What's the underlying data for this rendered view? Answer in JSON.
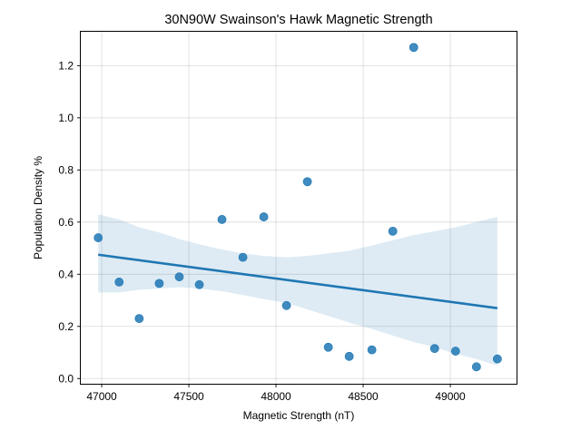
{
  "chart_data": {
    "type": "scatter",
    "title": "30N90W Swainson's Hawk Magnetic Strength",
    "xlabel": "Magnetic Strength (nT)",
    "ylabel": "Population Density %",
    "xlim": [
      46880,
      49380
    ],
    "ylim": [
      -0.02,
      1.33
    ],
    "xticks": [
      47000,
      47500,
      48000,
      48500,
      49000
    ],
    "yticks": [
      0.0,
      0.2,
      0.4,
      0.6,
      0.8,
      1.0,
      1.2
    ],
    "xtick_labels": [
      "47000",
      "47500",
      "48000",
      "48500",
      "49000"
    ],
    "ytick_labels": [
      "0.0",
      "0.2",
      "0.4",
      "0.6",
      "0.8",
      "1.0",
      "1.2"
    ],
    "grid": true,
    "points": [
      {
        "x": 46980,
        "y": 0.54
      },
      {
        "x": 47100,
        "y": 0.37
      },
      {
        "x": 47215,
        "y": 0.23
      },
      {
        "x": 47330,
        "y": 0.365
      },
      {
        "x": 47445,
        "y": 0.39
      },
      {
        "x": 47560,
        "y": 0.36
      },
      {
        "x": 47690,
        "y": 0.61
      },
      {
        "x": 47810,
        "y": 0.465
      },
      {
        "x": 47930,
        "y": 0.62
      },
      {
        "x": 48060,
        "y": 0.28
      },
      {
        "x": 48180,
        "y": 0.755
      },
      {
        "x": 48300,
        "y": 0.12
      },
      {
        "x": 48420,
        "y": 0.085
      },
      {
        "x": 48550,
        "y": 0.11
      },
      {
        "x": 48670,
        "y": 0.565
      },
      {
        "x": 48790,
        "y": 1.27
      },
      {
        "x": 48910,
        "y": 0.115
      },
      {
        "x": 49030,
        "y": 0.105
      },
      {
        "x": 49150,
        "y": 0.045
      },
      {
        "x": 49270,
        "y": 0.075
      }
    ],
    "regression": {
      "x": [
        46980,
        49270
      ],
      "y": [
        0.475,
        0.27
      ]
    },
    "confidence_band": {
      "x": [
        46980,
        47100,
        47215,
        47330,
        47445,
        47560,
        47690,
        47810,
        47930,
        48060,
        48180,
        48300,
        48420,
        48550,
        48670,
        48790,
        48910,
        49030,
        49150,
        49270
      ],
      "upper": [
        0.63,
        0.61,
        0.58,
        0.56,
        0.535,
        0.515,
        0.495,
        0.48,
        0.47,
        0.465,
        0.47,
        0.48,
        0.49,
        0.51,
        0.53,
        0.55,
        0.565,
        0.58,
        0.6,
        0.62
      ],
      "lower": [
        0.33,
        0.33,
        0.34,
        0.345,
        0.35,
        0.345,
        0.335,
        0.32,
        0.305,
        0.29,
        0.265,
        0.24,
        0.215,
        0.19,
        0.165,
        0.14,
        0.12,
        0.095,
        0.075,
        0.05
      ]
    },
    "colors": {
      "points": "#1f77b4",
      "line": "#1f77b4",
      "band": "#1f77b4",
      "grid": "#b0b0b0"
    }
  }
}
